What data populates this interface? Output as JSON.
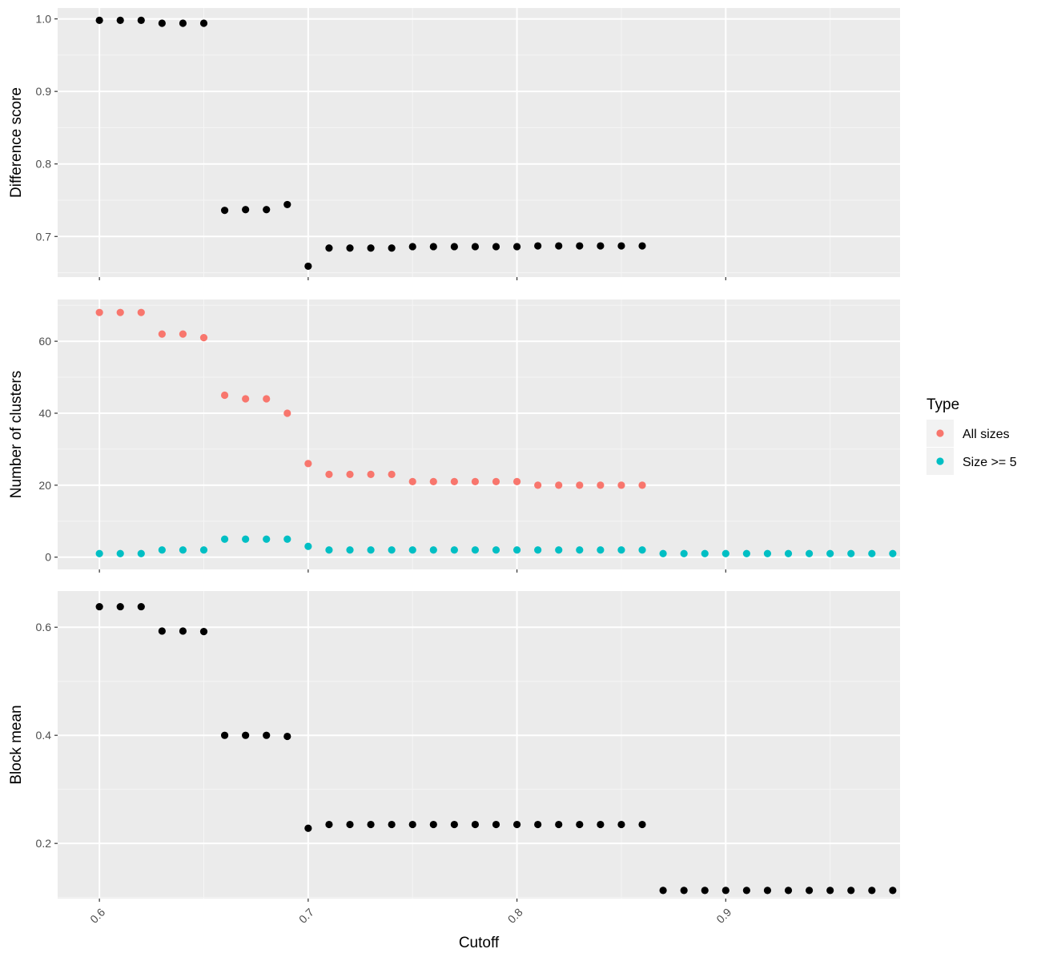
{
  "chart_data": {
    "type": "scatter",
    "xlabel": "Cutoff",
    "x_ticks": [
      "0.6",
      "0.7",
      "0.8",
      "0.9"
    ],
    "x_tick_values": [
      0.6,
      0.7,
      0.8,
      0.9
    ],
    "xlim": [
      0.58,
      0.9835
    ],
    "legend": {
      "title": "Type",
      "placement": "right",
      "entries": [
        {
          "label": "All sizes",
          "color": "#F8766D"
        },
        {
          "label": "Size >= 5",
          "color": "#00BFC4"
        }
      ]
    },
    "panels": [
      {
        "ylabel": "Difference score",
        "ylim": [
          0.644,
          1.015
        ],
        "y_ticks": [
          "0.7",
          "0.8",
          "0.9",
          "1.0"
        ],
        "y_tick_values": [
          0.7,
          0.8,
          0.9,
          1.0
        ],
        "series": [
          {
            "color": "#000000",
            "x": [
              0.6,
              0.61,
              0.62,
              0.63,
              0.64,
              0.65,
              0.66,
              0.67,
              0.68,
              0.69,
              0.7,
              0.71,
              0.72,
              0.73,
              0.74,
              0.75,
              0.76,
              0.77,
              0.78,
              0.79,
              0.8,
              0.81,
              0.82,
              0.83,
              0.84,
              0.85,
              0.86
            ],
            "y": [
              0.998,
              0.998,
              0.998,
              0.994,
              0.994,
              0.994,
              0.736,
              0.737,
              0.737,
              0.744,
              0.659,
              0.684,
              0.684,
              0.684,
              0.684,
              0.686,
              0.686,
              0.686,
              0.686,
              0.686,
              0.686,
              0.687,
              0.687,
              0.687,
              0.687,
              0.687,
              0.687
            ]
          }
        ]
      },
      {
        "ylabel": "Number of clusters",
        "ylim": [
          -3.4,
          71.6
        ],
        "y_ticks": [
          "0",
          "20",
          "40",
          "60"
        ],
        "y_tick_values": [
          0,
          20,
          40,
          60
        ],
        "series": [
          {
            "name": "All sizes",
            "color": "#F8766D",
            "x": [
              0.6,
              0.61,
              0.62,
              0.63,
              0.64,
              0.65,
              0.66,
              0.67,
              0.68,
              0.69,
              0.7,
              0.71,
              0.72,
              0.73,
              0.74,
              0.75,
              0.76,
              0.77,
              0.78,
              0.79,
              0.8,
              0.81,
              0.82,
              0.83,
              0.84,
              0.85,
              0.86
            ],
            "y": [
              68,
              68,
              68,
              62,
              62,
              61,
              45,
              44,
              44,
              40,
              26,
              23,
              23,
              23,
              23,
              21,
              21,
              21,
              21,
              21,
              21,
              20,
              20,
              20,
              20,
              20,
              20
            ]
          },
          {
            "name": "Size >= 5",
            "color": "#00BFC4",
            "x": [
              0.6,
              0.61,
              0.62,
              0.63,
              0.64,
              0.65,
              0.66,
              0.67,
              0.68,
              0.69,
              0.7,
              0.71,
              0.72,
              0.73,
              0.74,
              0.75,
              0.76,
              0.77,
              0.78,
              0.79,
              0.8,
              0.81,
              0.82,
              0.83,
              0.84,
              0.85,
              0.86,
              0.87,
              0.88,
              0.89,
              0.9,
              0.91,
              0.92,
              0.93,
              0.94,
              0.95,
              0.96,
              0.97,
              0.98
            ],
            "y": [
              1,
              1,
              1,
              2,
              2,
              2,
              5,
              5,
              5,
              5,
              3,
              2,
              2,
              2,
              2,
              2,
              2,
              2,
              2,
              2,
              2,
              2,
              2,
              2,
              2,
              2,
              2,
              1,
              1,
              1,
              1,
              1,
              1,
              1,
              1,
              1,
              1,
              1,
              1
            ]
          }
        ]
      },
      {
        "ylabel": "Block mean",
        "ylim": [
          0.098,
          0.667
        ],
        "y_ticks": [
          "0.2",
          "0.4",
          "0.6"
        ],
        "y_tick_values": [
          0.2,
          0.4,
          0.6
        ],
        "series": [
          {
            "color": "#000000",
            "x": [
              0.6,
              0.61,
              0.62,
              0.63,
              0.64,
              0.65,
              0.66,
              0.67,
              0.68,
              0.69,
              0.7,
              0.71,
              0.72,
              0.73,
              0.74,
              0.75,
              0.76,
              0.77,
              0.78,
              0.79,
              0.8,
              0.81,
              0.82,
              0.83,
              0.84,
              0.85,
              0.86,
              0.87,
              0.88,
              0.89,
              0.9,
              0.91,
              0.92,
              0.93,
              0.94,
              0.95,
              0.96,
              0.97,
              0.98
            ],
            "y": [
              0.638,
              0.638,
              0.638,
              0.593,
              0.593,
              0.592,
              0.4,
              0.4,
              0.4,
              0.398,
              0.228,
              0.235,
              0.235,
              0.235,
              0.235,
              0.235,
              0.235,
              0.235,
              0.235,
              0.235,
              0.235,
              0.235,
              0.235,
              0.235,
              0.235,
              0.235,
              0.235,
              0.113,
              0.113,
              0.113,
              0.113,
              0.113,
              0.113,
              0.113,
              0.113,
              0.113,
              0.113,
              0.113,
              0.113
            ]
          }
        ]
      }
    ]
  }
}
